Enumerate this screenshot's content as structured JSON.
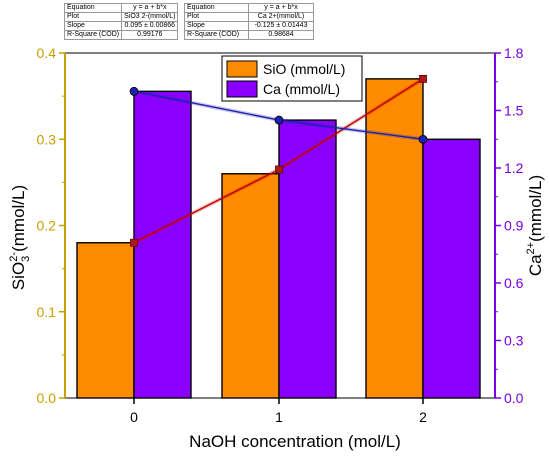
{
  "colors": {
    "siO_bar": "#FF8C00",
    "ca_bar": "#8A00FF",
    "left_axis": "#C8A000",
    "right_axis": "#7A00E6",
    "sio_fit": "#C00000",
    "ca_fit": "#1E22B0",
    "bar_edge": "#000000"
  },
  "fit_tables": [
    {
      "rows": [
        [
          "Equation",
          "y = a + b*x"
        ],
        [
          "Plot",
          "SiO3 2-(mmol/L)"
        ],
        [
          "Slope",
          "0.095 ± 0.00866"
        ],
        [
          "R-Square (COD)",
          "0.99176"
        ]
      ]
    },
    {
      "rows": [
        [
          "Equation",
          "y = a + b*x"
        ],
        [
          "Plot",
          "Ca 2+(mmol/L)"
        ],
        [
          "Slope",
          "-0.125 ± 0.01443"
        ],
        [
          "R-Square (COD)",
          "0.98684"
        ]
      ]
    }
  ],
  "chart_data": {
    "type": "bar",
    "categories": [
      "0",
      "1",
      "2"
    ],
    "xlabel": "NaOH concentration (mol/L)",
    "ylabel_left": {
      "base": "SiO",
      "sub": "3",
      "sup": "2-",
      "suffix": "(mmol/L)"
    },
    "ylabel_right": {
      "base": "Ca",
      "sup": "2+",
      "suffix": "(mmol/L)"
    },
    "ylim_left": [
      0,
      0.4
    ],
    "ylim_right": [
      0,
      1.8
    ],
    "yticks_left": [
      "0.0",
      "0.1",
      "0.2",
      "0.3",
      "0.4"
    ],
    "yticks_right": [
      "0.0",
      "0.3",
      "0.6",
      "0.9",
      "1.2",
      "1.5",
      "1.8"
    ],
    "legend": {
      "placement": "top-center",
      "entries": [
        "SiO (mmol/L)",
        "Ca (mmol/L)"
      ]
    },
    "series": [
      {
        "name": "SiO (mmol/L)",
        "axis": "left",
        "values": [
          0.18,
          0.26,
          0.37
        ]
      },
      {
        "name": "Ca (mmol/L)",
        "axis": "right",
        "values": [
          1.6,
          1.45,
          1.35
        ]
      }
    ],
    "fit_lines": [
      {
        "axis": "left",
        "x": [
          0,
          1,
          2
        ],
        "y": [
          0.18,
          0.265,
          0.37
        ]
      },
      {
        "axis": "right",
        "x": [
          0,
          1,
          2
        ],
        "y": [
          1.6,
          1.45,
          1.35
        ]
      }
    ]
  }
}
